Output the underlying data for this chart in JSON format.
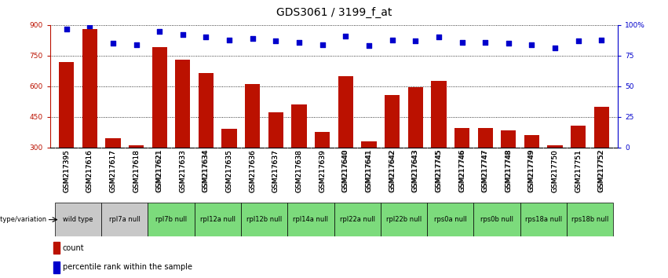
{
  "title": "GDS3061 / 3199_f_at",
  "samples": [
    "GSM217395",
    "GSM217616",
    "GSM217617",
    "GSM217618",
    "GSM217621",
    "GSM217633",
    "GSM217634",
    "GSM217635",
    "GSM217636",
    "GSM217637",
    "GSM217638",
    "GSM217639",
    "GSM217640",
    "GSM217641",
    "GSM217642",
    "GSM217643",
    "GSM217745",
    "GSM217746",
    "GSM217747",
    "GSM217748",
    "GSM217749",
    "GSM217750",
    "GSM217751",
    "GSM217752"
  ],
  "counts": [
    720,
    880,
    345,
    310,
    790,
    730,
    665,
    390,
    610,
    470,
    510,
    375,
    650,
    330,
    555,
    595,
    625,
    395,
    395,
    385,
    360,
    310,
    405,
    500
  ],
  "percentile_ranks": [
    97,
    99,
    85,
    84,
    95,
    92,
    90,
    88,
    89,
    87,
    86,
    84,
    91,
    83,
    88,
    87,
    90,
    86,
    86,
    85,
    84,
    81,
    87,
    88
  ],
  "genotype_groups": [
    {
      "label": "wild type",
      "samples": [
        "GSM217395",
        "GSM217616"
      ],
      "color": "#c8c8c8"
    },
    {
      "label": "rpl7a null",
      "samples": [
        "GSM217617",
        "GSM217618"
      ],
      "color": "#c8c8c8"
    },
    {
      "label": "rpl7b null",
      "samples": [
        "GSM217621",
        "GSM217633"
      ],
      "color": "#7cdb7c"
    },
    {
      "label": "rpl12a null",
      "samples": [
        "GSM217634",
        "GSM217635"
      ],
      "color": "#7cdb7c"
    },
    {
      "label": "rpl12b null",
      "samples": [
        "GSM217636",
        "GSM217637"
      ],
      "color": "#7cdb7c"
    },
    {
      "label": "rpl14a null",
      "samples": [
        "GSM217638",
        "GSM217639"
      ],
      "color": "#7cdb7c"
    },
    {
      "label": "rpl22a null",
      "samples": [
        "GSM217640",
        "GSM217641"
      ],
      "color": "#7cdb7c"
    },
    {
      "label": "rpl22b null",
      "samples": [
        "GSM217642",
        "GSM217643"
      ],
      "color": "#7cdb7c"
    },
    {
      "label": "rps0a null",
      "samples": [
        "GSM217745",
        "GSM217746"
      ],
      "color": "#7cdb7c"
    },
    {
      "label": "rps0b null",
      "samples": [
        "GSM217747",
        "GSM217748"
      ],
      "color": "#7cdb7c"
    },
    {
      "label": "rps18a null",
      "samples": [
        "GSM217749",
        "GSM217750"
      ],
      "color": "#7cdb7c"
    },
    {
      "label": "rps18b null",
      "samples": [
        "GSM217751",
        "GSM217752"
      ],
      "color": "#7cdb7c"
    }
  ],
  "bar_color": "#bb1100",
  "dot_color": "#0000cc",
  "left_ylim": [
    300,
    900
  ],
  "left_yticks": [
    300,
    450,
    600,
    750,
    900
  ],
  "right_ylim": [
    0,
    100
  ],
  "right_yticks": [
    0,
    25,
    50,
    75,
    100
  ],
  "right_yticklabels": [
    "0",
    "25",
    "50",
    "75",
    "100%"
  ],
  "background_color": "#ffffff",
  "title_fontsize": 10,
  "tick_fontsize": 6.5,
  "annot_fontsize": 6.0,
  "legend_fontsize": 7
}
